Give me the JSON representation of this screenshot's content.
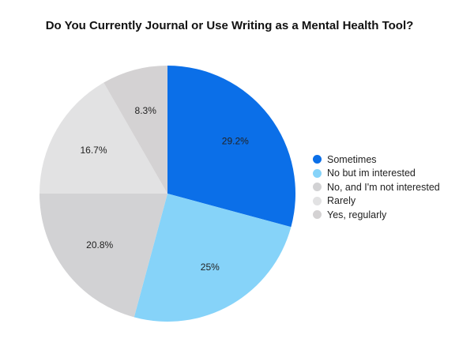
{
  "chart_data": {
    "type": "pie",
    "title": "Do You Currently Journal or Use Writing as a Mental Health Tool?",
    "slices": [
      {
        "label": "Sometimes",
        "value": 29.2,
        "display": "29.2%",
        "color": "#0b6fe8"
      },
      {
        "label": "No but im interested",
        "value": 25,
        "display": "25%",
        "color": "#86d3f9"
      },
      {
        "label": "No, and I'm not interested",
        "value": 20.8,
        "display": "20.8%",
        "color": "#d2d2d4"
      },
      {
        "label": "Rarely",
        "value": 16.7,
        "display": "16.7%",
        "color": "#e2e2e3"
      },
      {
        "label": "Yes, regularly",
        "value": 8.3,
        "display": "8.3%",
        "color": "#d4d2d3"
      }
    ],
    "legend_position": "right",
    "start_angle": "12 o'clock",
    "direction": "clockwise"
  }
}
